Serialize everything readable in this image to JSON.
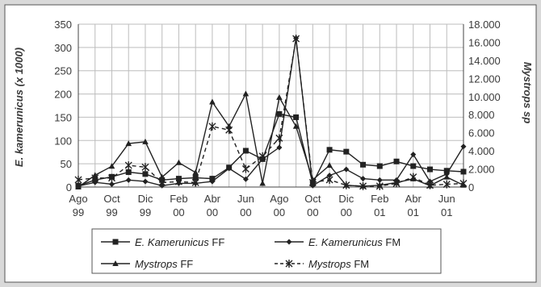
{
  "chart_data": {
    "type": "line",
    "x_tick_labels": [
      [
        "Ago",
        "99"
      ],
      [
        "Oct",
        "99"
      ],
      [
        "Dic",
        "99"
      ],
      [
        "Feb",
        "00"
      ],
      [
        "Abr",
        "00"
      ],
      [
        "Jun",
        "00"
      ],
      [
        "Ago",
        "00"
      ],
      [
        "Oct",
        "00"
      ],
      [
        "Dic",
        "00"
      ],
      [
        "Feb",
        "01"
      ],
      [
        "Abr",
        "01"
      ],
      [
        "Jun",
        "01"
      ]
    ],
    "n_points": 24,
    "y_left": {
      "label": "E. kamerunicus (x 1000)",
      "lim": [
        0,
        350
      ],
      "ticks": [
        "0",
        "50",
        "100",
        "150",
        "200",
        "250",
        "300",
        "350"
      ]
    },
    "y_right": {
      "label": "Mystrops sp",
      "lim": [
        0,
        18000
      ],
      "ticks": [
        "0",
        "2.000",
        "4.000",
        "6.000",
        "8.000",
        "10.000",
        "12.000",
        "14.000",
        "16.000",
        "18.000"
      ]
    },
    "grid": true,
    "legend_position": "bottom",
    "series": [
      {
        "name": "E. Kamerunicus FF",
        "legend_italic": "E. Kamerunicus",
        "legend_plain": " FF",
        "axis": "left",
        "marker": "square",
        "dash": "solid",
        "values": [
          3,
          15,
          22,
          32,
          28,
          15,
          18,
          20,
          18,
          42,
          78,
          60,
          157,
          150,
          8,
          80,
          76,
          48,
          45,
          55,
          45,
          38,
          35,
          33
        ]
      },
      {
        "name": "E. Kamerunicus FM",
        "legend_italic": "E. Kamerunicus",
        "legend_plain": " FM",
        "axis": "left",
        "marker": "diamond",
        "dash": "solid",
        "values": [
          2,
          10,
          6,
          15,
          12,
          3,
          8,
          8,
          12,
          40,
          17,
          60,
          85,
          320,
          3,
          25,
          38,
          18,
          15,
          15,
          70,
          12,
          28,
          87
        ]
      },
      {
        "name": "Mystrops FF",
        "legend_italic": "Mystrops",
        "legend_plain": " FF",
        "axis": "right",
        "marker": "triangle",
        "dash": "solid",
        "values": [
          0,
          1300,
          2300,
          4800,
          5000,
          1100,
          2700,
          1600,
          9400,
          6700,
          10300,
          400,
          9900,
          6700,
          800,
          2400,
          200,
          100,
          200,
          500,
          900,
          150,
          1100,
          200
        ]
      },
      {
        "name": "Mystrops FM",
        "legend_italic": "Mystrops",
        "legend_plain": " FM",
        "axis": "right",
        "marker": "x",
        "dash": "dashed",
        "values": [
          800,
          1000,
          1000,
          2400,
          2200,
          500,
          600,
          500,
          6700,
          6300,
          2000,
          3400,
          5400,
          16400,
          500,
          800,
          200,
          100,
          100,
          400,
          1100,
          200,
          300,
          400
        ]
      }
    ]
  }
}
